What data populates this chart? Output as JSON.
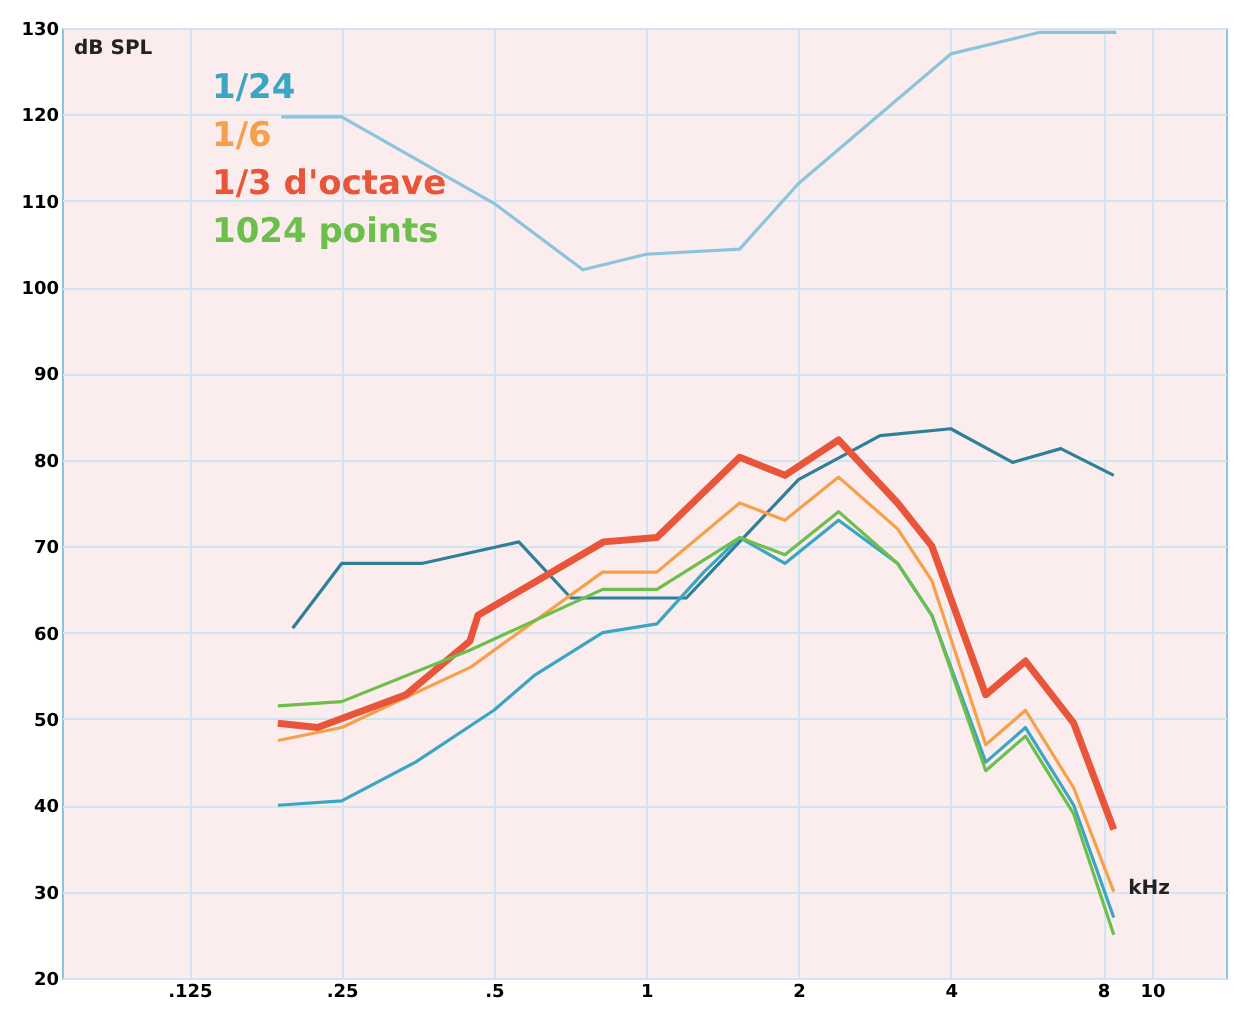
{
  "chart_data": {
    "type": "line",
    "xlabel": "kHz",
    "ylabel": "dB SPL",
    "log": "x",
    "grid": true,
    "legend": "top left",
    "marker": "none",
    "line_style": "solid",
    "xlim": [
      0.07,
      14
    ],
    "xticks": [
      {
        "value": 0.125,
        "label": ".125"
      },
      {
        "value": 0.25,
        "label": ".25"
      },
      {
        "value": 0.5,
        "label": ".5"
      },
      1,
      2,
      4,
      8,
      10
    ],
    "ylim": [
      20,
      130
    ],
    "yticks": [
      20,
      30,
      40,
      50,
      60,
      70,
      80,
      90,
      100,
      110,
      120,
      130
    ],
    "series": [
      {
        "color": "#8cc4de",
        "x": [
          0.19,
          0.25,
          0.5,
          0.75,
          1.0,
          1.53,
          2,
          4,
          6,
          8.5
        ],
        "values": [
          119.7,
          119.7,
          109.7,
          102,
          103.8,
          104.4,
          112,
          127,
          129.5,
          129.5
        ]
      },
      {
        "color": "#2f7f99",
        "x": [
          0.2,
          0.25,
          0.36,
          0.56,
          0.71,
          1.0,
          1.2,
          2.0,
          2.9,
          4,
          5.3,
          6.6,
          8.4
        ],
        "values": [
          60.5,
          68,
          68,
          70.5,
          64,
          64,
          64,
          77.7,
          82.8,
          83.6,
          79.7,
          81.3,
          78.2
        ]
      },
      {
        "name": "1/24",
        "color": "#3aa6c4",
        "x": [
          0.187,
          0.25,
          0.35,
          0.5,
          0.6,
          0.82,
          1.05,
          1.3,
          1.53,
          1.88,
          2.4,
          3.14,
          3.67,
          4.69,
          5.62,
          7.0,
          8.4
        ],
        "values": [
          40,
          40.5,
          45,
          51,
          55,
          60,
          61,
          67,
          71,
          68,
          73,
          68,
          62,
          45,
          49,
          40,
          27
        ]
      },
      {
        "name": "1/6",
        "color": "#f5a04a",
        "x": [
          0.187,
          0.25,
          0.45,
          0.82,
          1.05,
          1.53,
          1.88,
          2.4,
          3.14,
          3.67,
          4.69,
          5.62,
          7.0,
          8.4
        ],
        "values": [
          47.5,
          49,
          56,
          67,
          67,
          75,
          73,
          78,
          72,
          66,
          47,
          51,
          42,
          30
        ]
      },
      {
        "name": "1/3 d'octave",
        "color": "#e8553a",
        "x": [
          0.187,
          0.224,
          0.335,
          0.448,
          0.465,
          0.824,
          1.05,
          1.53,
          1.88,
          2.4,
          3.14,
          3.67,
          4.69,
          5.62,
          7.0,
          8.4
        ],
        "values": [
          49.5,
          49,
          52.8,
          59,
          62,
          70.5,
          71,
          80.3,
          78.2,
          82.3,
          75,
          70,
          52.8,
          56.7,
          49.5,
          37.2
        ]
      },
      {
        "name": "1024 points",
        "color": "#6cbf4a",
        "x": [
          0.187,
          0.25,
          0.45,
          0.82,
          1.05,
          1.53,
          1.88,
          2.4,
          3.14,
          3.67,
          4.69,
          5.62,
          7.0,
          8.4
        ],
        "values": [
          51.5,
          52,
          58,
          65,
          65,
          71,
          69,
          74,
          68,
          62,
          44,
          48,
          39,
          25
        ]
      }
    ]
  }
}
